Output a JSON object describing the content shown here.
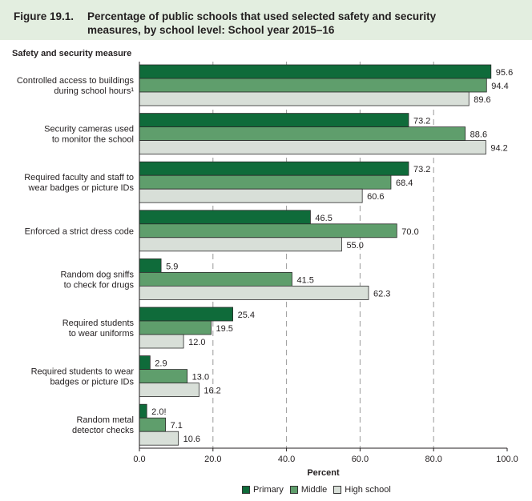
{
  "figure": {
    "number": "Figure 19.1.",
    "title": "Percentage of public schools that used selected safety and security measures, by school level: School year 2015–16"
  },
  "colors": {
    "title_band": "#e3eee0",
    "primary": "#0f6b3a",
    "middle": "#5f9e6c",
    "high_school": "#d8dfd8"
  },
  "chart_data": {
    "type": "bar",
    "orientation": "horizontal",
    "title": "Percentage of public schools that used selected safety and security measures, by school level: School year 2015–16",
    "ylabel": "Safety and security measure",
    "xlabel": "Percent",
    "xlim": [
      0,
      100
    ],
    "xticks": [
      0,
      20,
      40,
      60,
      80,
      100
    ],
    "xtick_labels": [
      "0.0",
      "20.0",
      "40.0",
      "60.0",
      "80.0",
      "100.0"
    ],
    "grid": "vertical dashed",
    "legend_position": "bottom",
    "categories": [
      [
        "Controlled access to buildings",
        "during school hours¹"
      ],
      [
        "Security cameras used",
        "to monitor the school"
      ],
      [
        "Required faculty and staff to",
        "wear badges or picture IDs"
      ],
      [
        "Enforced a strict dress code"
      ],
      [
        "Random dog sniffs",
        "to check for drugs"
      ],
      [
        "Required students",
        "to wear uniforms"
      ],
      [
        "Required students to wear",
        "badges or picture IDs"
      ],
      [
        "Random metal",
        "detector checks"
      ]
    ],
    "series": [
      {
        "name": "Primary",
        "key": "primary",
        "values": [
          95.6,
          73.2,
          73.2,
          46.5,
          5.9,
          25.4,
          2.9,
          2.0
        ],
        "labels": [
          "95.6",
          "73.2",
          "73.2",
          "46.5",
          "5.9",
          "25.4",
          "2.9",
          "2.0!"
        ]
      },
      {
        "name": "Middle",
        "key": "middle",
        "values": [
          94.4,
          88.6,
          68.4,
          70.0,
          41.5,
          19.5,
          13.0,
          7.1
        ],
        "labels": [
          "94.4",
          "88.6",
          "68.4",
          "70.0",
          "41.5",
          "19.5",
          "13.0",
          "7.1"
        ]
      },
      {
        "name": "High school",
        "key": "high_school",
        "values": [
          89.6,
          94.2,
          60.6,
          55.0,
          62.3,
          12.0,
          16.2,
          10.6
        ],
        "labels": [
          "89.6",
          "94.2",
          "60.6",
          "55.0",
          "62.3",
          "12.0",
          "16.2",
          "10.6"
        ]
      }
    ]
  }
}
